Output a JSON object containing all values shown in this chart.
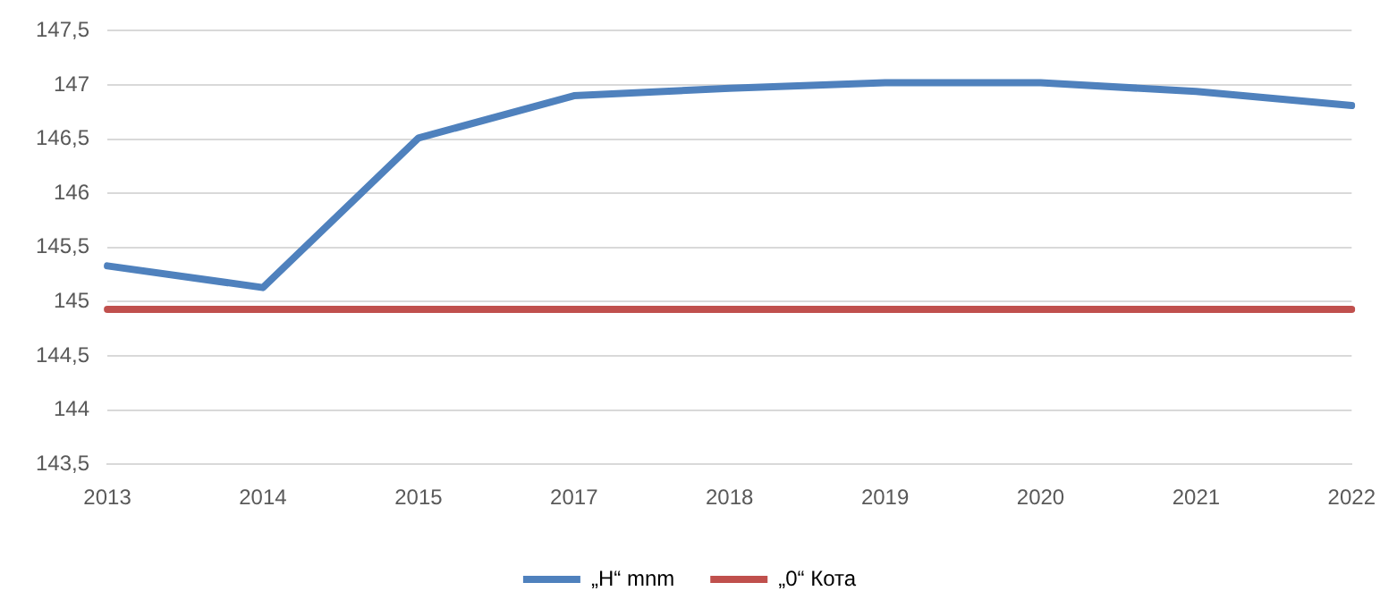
{
  "chart_data": {
    "type": "line",
    "categories": [
      "2013",
      "2014",
      "2015",
      "2017",
      "2018",
      "2019",
      "2020",
      "2021",
      "2022"
    ],
    "series": [
      {
        "name": "„H“ mnm",
        "color": "#4f81bd",
        "values": [
          145.33,
          145.13,
          146.51,
          146.9,
          146.97,
          147.02,
          147.02,
          146.94,
          146.81
        ]
      },
      {
        "name": "„0“ Кота",
        "color": "#c0504d",
        "values": [
          144.93,
          144.93,
          144.93,
          144.93,
          144.93,
          144.93,
          144.93,
          144.93,
          144.93
        ]
      }
    ],
    "ylim": [
      143.5,
      147.5
    ],
    "yticks": [
      {
        "value": 143.5,
        "label": "143,5"
      },
      144,
      {
        "value": 144.5,
        "label": "144,5"
      },
      145,
      {
        "value": 145.5,
        "label": "145,5"
      },
      146,
      {
        "value": 146.5,
        "label": "146,5"
      },
      147,
      {
        "value": 147.5,
        "label": "147,5"
      }
    ],
    "grid": "y",
    "legend": "bottom",
    "marker": "none",
    "line_style": "solid"
  }
}
